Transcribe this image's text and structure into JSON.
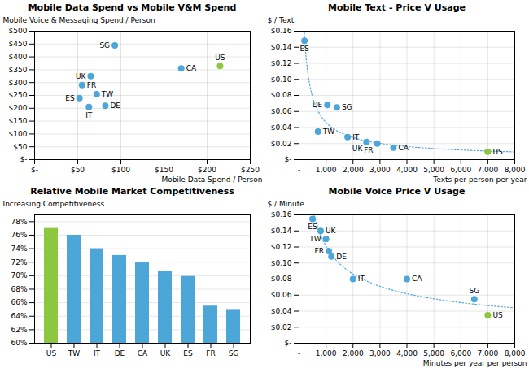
{
  "chart_data": [
    {
      "type": "scatter",
      "title": "Mobile Data Spend vs Mobile V&M Spend",
      "xlabel": "Mobile Data Spend / Person",
      "ylabel": "Mobile Voice & Messaging Spend / Person",
      "annotations": [
        "SG",
        "UK",
        "FR",
        "ES",
        "IT",
        "TW",
        "DE",
        "CA",
        "US"
      ],
      "x": [
        93,
        65,
        55,
        52,
        63,
        72,
        82,
        170,
        215
      ],
      "values": [
        445,
        325,
        290,
        240,
        205,
        255,
        210,
        355,
        365
      ],
      "colors": [
        "#4da6d8",
        "#4da6d8",
        "#4da6d8",
        "#4da6d8",
        "#4da6d8",
        "#4da6d8",
        "#4da6d8",
        "#4da6d8",
        "#8dc63f"
      ],
      "xlim": [
        0,
        250
      ],
      "ylim": [
        0,
        500
      ],
      "xticks": [
        {
          "value": 0,
          "label": "$-"
        },
        {
          "value": 50,
          "label": "$50"
        },
        {
          "value": 100,
          "label": "$100"
        },
        {
          "value": 150,
          "label": "$150"
        },
        {
          "value": 200,
          "label": "$200"
        },
        {
          "value": 250,
          "label": "$250"
        }
      ],
      "yticks": [
        {
          "value": 0,
          "label": "$-"
        },
        {
          "value": 50,
          "label": "$50"
        },
        {
          "value": 100,
          "label": "$100"
        },
        {
          "value": 150,
          "label": "$150"
        },
        {
          "value": 200,
          "label": "$200"
        },
        {
          "value": 250,
          "label": "$250"
        },
        {
          "value": 300,
          "label": "$300"
        },
        {
          "value": 350,
          "label": "$350"
        },
        {
          "value": 400,
          "label": "$400"
        },
        {
          "value": 450,
          "label": "$450"
        },
        {
          "value": 500,
          "label": "$500"
        }
      ],
      "grid": true
    },
    {
      "type": "scatter",
      "title": "Mobile Text - Price V Usage",
      "xlabel": "Texts per person per year",
      "ylabel": "$ / Text",
      "annotations": [
        "ES",
        "TW",
        "DE",
        "SG",
        "IT",
        "UK",
        "FR",
        "CA",
        "US"
      ],
      "x": [
        200,
        700,
        1050,
        1400,
        1800,
        2500,
        2900,
        3500,
        7000
      ],
      "values": [
        0.148,
        0.035,
        0.068,
        0.065,
        0.028,
        0.022,
        0.02,
        0.015,
        0.01
      ],
      "colors": [
        "#4da6d8",
        "#4da6d8",
        "#4da6d8",
        "#4da6d8",
        "#4da6d8",
        "#4da6d8",
        "#4da6d8",
        "#4da6d8",
        "#8dc63f"
      ],
      "line_style": "dotted",
      "color": "#4da6d8",
      "xlim": [
        0,
        8000
      ],
      "ylim": [
        0,
        0.16
      ],
      "xticks": [
        {
          "value": 0,
          "label": "-"
        },
        {
          "value": 1000,
          "label": "1,000"
        },
        {
          "value": 2000,
          "label": "2,000"
        },
        {
          "value": 3000,
          "label": "3,000"
        },
        {
          "value": 4000,
          "label": "4,000"
        },
        {
          "value": 5000,
          "label": "5,000"
        },
        {
          "value": 6000,
          "label": "6,000"
        },
        {
          "value": 7000,
          "label": "7,000"
        },
        {
          "value": 8000,
          "label": "8,000"
        }
      ],
      "yticks": [
        {
          "value": 0,
          "label": "$-"
        },
        {
          "value": 0.02,
          "label": "$0.02"
        },
        {
          "value": 0.04,
          "label": "$0.04"
        },
        {
          "value": 0.06,
          "label": "$0.06"
        },
        {
          "value": 0.08,
          "label": "$0.08"
        },
        {
          "value": 0.1,
          "label": "$0.10"
        },
        {
          "value": 0.12,
          "label": "$0.12"
        },
        {
          "value": 0.14,
          "label": "$0.14"
        },
        {
          "value": 0.16,
          "label": "$0.16"
        }
      ],
      "grid": true
    },
    {
      "type": "bar",
      "title": "Relative Mobile Market Competitiveness",
      "ylabel": "Increasing Competitiveness",
      "categories": [
        "US",
        "TW",
        "IT",
        "DE",
        "CA",
        "UK",
        "ES",
        "FR",
        "SG"
      ],
      "values": [
        0.77,
        0.76,
        0.74,
        0.73,
        0.719,
        0.706,
        0.699,
        0.655,
        0.65
      ],
      "colors": [
        "#8dc63f",
        "#4da6d8",
        "#4da6d8",
        "#4da6d8",
        "#4da6d8",
        "#4da6d8",
        "#4da6d8",
        "#4da6d8",
        "#4da6d8"
      ],
      "ylim": [
        0.6,
        0.79
      ],
      "yticks": [
        {
          "value": 0.6,
          "label": "60%"
        },
        {
          "value": 0.62,
          "label": "62%"
        },
        {
          "value": 0.64,
          "label": "64%"
        },
        {
          "value": 0.66,
          "label": "66%"
        },
        {
          "value": 0.68,
          "label": "68%"
        },
        {
          "value": 0.7,
          "label": "70%"
        },
        {
          "value": 0.72,
          "label": "72%"
        },
        {
          "value": 0.74,
          "label": "74%"
        },
        {
          "value": 0.76,
          "label": "76%"
        },
        {
          "value": 0.78,
          "label": "78%"
        }
      ],
      "grid": "y"
    },
    {
      "type": "scatter",
      "title": "Mobile Voice Price V Usage",
      "xlabel": "Minutes per year per person",
      "ylabel": "$ / Minute",
      "annotations": [
        "ES",
        "UK",
        "TW",
        "FR",
        "DE",
        "IT",
        "CA",
        "SG",
        "US"
      ],
      "x": [
        500,
        800,
        1000,
        1100,
        1200,
        2000,
        4000,
        6500,
        7000
      ],
      "values": [
        0.155,
        0.14,
        0.13,
        0.115,
        0.108,
        0.08,
        0.08,
        0.055,
        0.035
      ],
      "colors": [
        "#4da6d8",
        "#4da6d8",
        "#4da6d8",
        "#4da6d8",
        "#4da6d8",
        "#4da6d8",
        "#4da6d8",
        "#4da6d8",
        "#8dc63f"
      ],
      "line_style": "dotted",
      "color": "#4da6d8",
      "xlim": [
        0,
        8000
      ],
      "ylim": [
        0,
        0.16
      ],
      "xticks": [
        {
          "value": 0,
          "label": "-"
        },
        {
          "value": 1000,
          "label": "1,000"
        },
        {
          "value": 2000,
          "label": "2,000"
        },
        {
          "value": 3000,
          "label": "3,000"
        },
        {
          "value": 4000,
          "label": "4,000"
        },
        {
          "value": 5000,
          "label": "5,000"
        },
        {
          "value": 6000,
          "label": "6,000"
        },
        {
          "value": 7000,
          "label": "7,000"
        },
        {
          "value": 8000,
          "label": "8,000"
        }
      ],
      "yticks": [
        {
          "value": 0,
          "label": "$-"
        },
        {
          "value": 0.02,
          "label": "$0.02"
        },
        {
          "value": 0.04,
          "label": "$0.04"
        },
        {
          "value": 0.06,
          "label": "$0.06"
        },
        {
          "value": 0.08,
          "label": "$0.08"
        },
        {
          "value": 0.1,
          "label": "$0.10"
        },
        {
          "value": 0.12,
          "label": "$0.12"
        },
        {
          "value": 0.14,
          "label": "$0.14"
        },
        {
          "value": 0.16,
          "label": "$0.16"
        }
      ],
      "grid": true
    }
  ]
}
